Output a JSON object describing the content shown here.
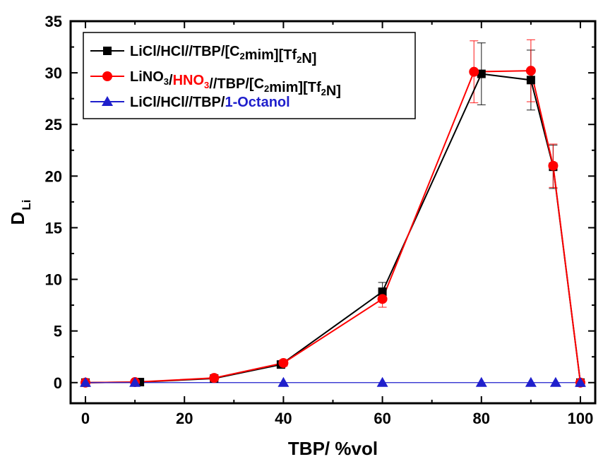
{
  "chart_data": {
    "type": "line",
    "xlabel": "TBP/ %vol",
    "ylabel": {
      "main": "D",
      "sub": "Li"
    },
    "xlim": [
      -3,
      103
    ],
    "ylim": [
      -2,
      35
    ],
    "xticks": [
      0,
      20,
      40,
      60,
      80,
      100
    ],
    "yticks": [
      0,
      5,
      10,
      15,
      20,
      25,
      30,
      35
    ],
    "xtick_labels": [
      "0",
      "20",
      "40",
      "60",
      "80",
      "100"
    ],
    "ytick_labels": [
      "0",
      "5",
      "10",
      "15",
      "20",
      "25",
      "30",
      "35"
    ],
    "grid": false,
    "legend_position": "top-left",
    "series": [
      {
        "name": "LiCl/HCl//TBP/[C2mim][Tf2N]",
        "color": "#000000",
        "marker": "square",
        "x": [
          0,
          11,
          26,
          39.5,
          60,
          80,
          90,
          94.5,
          100
        ],
        "y": [
          0,
          0.05,
          0.4,
          1.75,
          8.8,
          29.9,
          29.3,
          20.9,
          0
        ],
        "err": [
          0,
          0,
          0.2,
          0.3,
          0.9,
          3.0,
          2.9,
          2.1,
          0
        ]
      },
      {
        "name": "LiNO3/HNO3//TBP/[C2mim][Tf2N]",
        "color": "#ff0000",
        "marker": "circle",
        "x": [
          0,
          10,
          26,
          40,
          60,
          78.5,
          90,
          94.5,
          100
        ],
        "y": [
          0,
          0.05,
          0.45,
          1.9,
          8.1,
          30.1,
          30.2,
          21.0,
          0
        ],
        "err": [
          0,
          0,
          0.2,
          0.3,
          0.8,
          3.0,
          3.0,
          2.1,
          0
        ]
      },
      {
        "name": "LiCl/HCl//TBP/1-Octanol",
        "color": "#1f1fcc",
        "marker": "triangle",
        "x": [
          0,
          10,
          40,
          60,
          80,
          90,
          95,
          100
        ],
        "y": [
          0,
          0,
          0,
          0,
          0,
          0,
          0,
          0
        ],
        "err": []
      }
    ],
    "legend": [
      {
        "parts": [
          {
            "t": "LiCl/HCl//TBP/[C"
          },
          {
            "t": "2",
            "sub": true
          },
          {
            "t": "mim][Tf"
          },
          {
            "t": "2",
            "sub": true
          },
          {
            "t": "N]"
          }
        ]
      },
      {
        "parts": [
          {
            "t": "LiNO"
          },
          {
            "t": "3",
            "sub": true
          },
          {
            "t": "/"
          },
          {
            "t": "HNO",
            "c": "#ff0000"
          },
          {
            "t": "3",
            "sub": true,
            "c": "#ff0000"
          },
          {
            "t": "//TBP/[C"
          },
          {
            "t": "2",
            "sub": true
          },
          {
            "t": "mim][Tf"
          },
          {
            "t": "2",
            "sub": true
          },
          {
            "t": "N]"
          }
        ]
      },
      {
        "parts": [
          {
            "t": "LiCl/HCl//TBP/"
          },
          {
            "t": "1-Octanol",
            "c": "#1f1fcc"
          }
        ]
      }
    ]
  }
}
